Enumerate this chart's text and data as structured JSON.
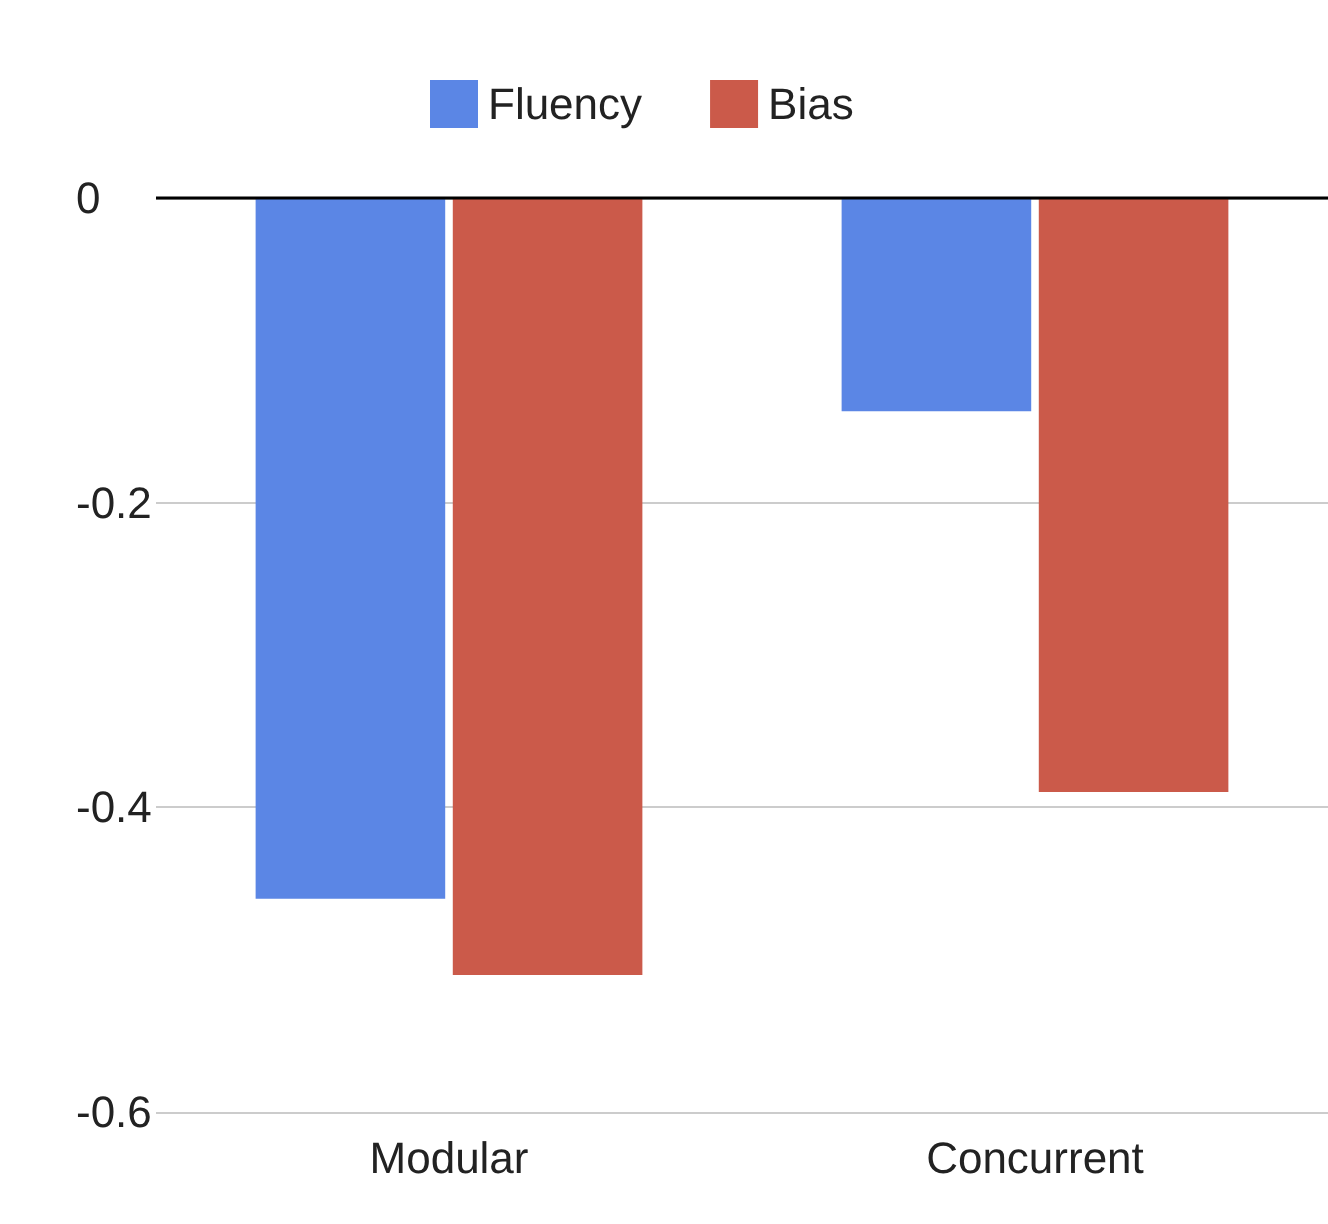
{
  "chart_data": {
    "type": "bar",
    "categories": [
      "Modular",
      "Concurrent"
    ],
    "series": [
      {
        "name": "Fluency",
        "color": "#5b86e5",
        "values": [
          -0.46,
          -0.14
        ]
      },
      {
        "name": "Bias",
        "color": "#cb5a4a",
        "values": [
          -0.51,
          -0.39
        ]
      }
    ],
    "ylim": [
      -0.6,
      0
    ],
    "yticks": [
      -0.6,
      -0.4,
      -0.2,
      0
    ],
    "grid": "y",
    "legend": "top"
  }
}
